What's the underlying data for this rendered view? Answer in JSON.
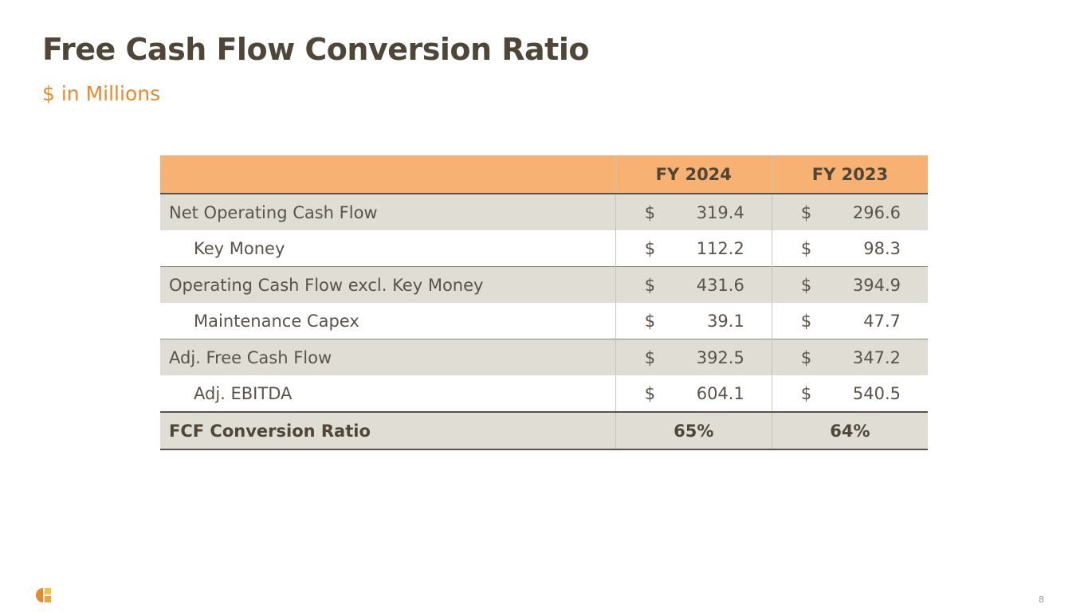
{
  "header": {
    "title": "Free Cash Flow Conversion Ratio",
    "subtitle": "$ in Millions"
  },
  "table": {
    "columns": [
      "FY 2024",
      "FY 2023"
    ],
    "rows": [
      {
        "label": "Net Operating Cash Flow",
        "indent": false,
        "cells": [
          {
            "currency": "$",
            "amount": "319.4"
          },
          {
            "currency": "$",
            "amount": "296.6"
          }
        ]
      },
      {
        "label": "Key Money",
        "indent": true,
        "cells": [
          {
            "currency": "$",
            "amount": "112.2"
          },
          {
            "currency": "$",
            "amount": "98.3"
          }
        ]
      },
      {
        "label": "Operating Cash Flow excl. Key Money",
        "indent": false,
        "cells": [
          {
            "currency": "$",
            "amount": "431.6"
          },
          {
            "currency": "$",
            "amount": "394.9"
          }
        ]
      },
      {
        "label": "Maintenance Capex",
        "indent": true,
        "cells": [
          {
            "currency": "$",
            "amount": "39.1"
          },
          {
            "currency": "$",
            "amount": "47.7"
          }
        ]
      },
      {
        "label": "Adj. Free Cash Flow",
        "indent": false,
        "cells": [
          {
            "currency": "$",
            "amount": "392.5"
          },
          {
            "currency": "$",
            "amount": "347.2"
          }
        ]
      },
      {
        "label": "Adj. EBITDA",
        "indent": true,
        "cells": [
          {
            "currency": "$",
            "amount": "604.1"
          },
          {
            "currency": "$",
            "amount": "540.5"
          }
        ]
      }
    ],
    "total": {
      "label": "FCF Conversion Ratio",
      "cells": [
        "65%",
        "64%"
      ]
    }
  },
  "footer": {
    "page_number": "8"
  }
}
